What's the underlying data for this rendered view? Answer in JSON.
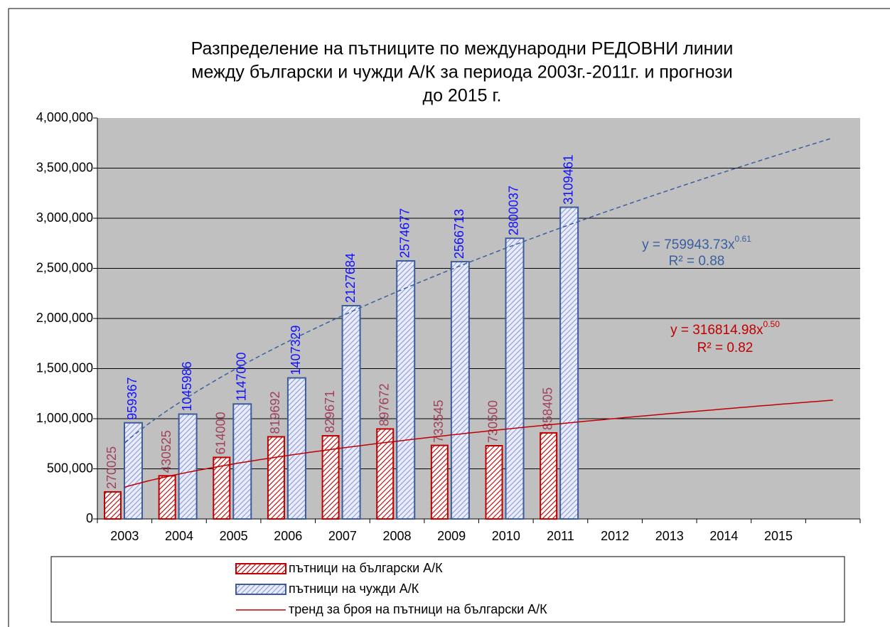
{
  "chart_data": {
    "type": "bar",
    "title": [
      "Разпределение на пътниците по международни РЕДОВНИ линии",
      "между български и чужди А/К за периода 2003г.-2011г. и прогнози",
      "до 2015 г."
    ],
    "categories": [
      "2003",
      "2004",
      "2005",
      "2006",
      "2007",
      "2008",
      "2009",
      "2010",
      "2011",
      "2012",
      "2013",
      "2014",
      "2015",
      null
    ],
    "series": [
      {
        "name": "пътници на български А/К",
        "color": "#c00000",
        "label_color": "#a0405a",
        "values": [
          270025,
          430525,
          614000,
          819692,
          829671,
          897672,
          733545,
          730500,
          858405,
          null,
          null,
          null,
          null,
          null
        ]
      },
      {
        "name": "пътници на чужди А/К",
        "color": "#3c5c9c",
        "label_color": "#1010ff",
        "values": [
          959367,
          1045986,
          1147000,
          1407329,
          2127684,
          2574677,
          2566713,
          2800037,
          3109461,
          null,
          null,
          null,
          null,
          null
        ]
      }
    ],
    "trendlines": [
      {
        "name": "тренд за броя на пътници на български А/К",
        "series": 0,
        "color": "#c00000",
        "dashed": false,
        "coefficient": 316814.98,
        "exponent": 0.5,
        "equation": "y = 316814.98x",
        "exponent_label": "0.50",
        "r2": "R² = 0.82"
      },
      {
        "series": 1,
        "color": "#3a5f9f",
        "dashed": true,
        "coefficient": 759943.73,
        "exponent": 0.61,
        "equation": "y = 759943.73x",
        "exponent_label": "0.61",
        "r2": "R² = 0.88"
      }
    ],
    "ylim": [
      0,
      4000000
    ],
    "yticks": [
      0,
      {
        "value": 500000,
        "label": "500,000"
      },
      {
        "value": 1000000,
        "label": "1,000,000"
      },
      {
        "value": 1500000,
        "label": "1,500,000"
      },
      {
        "value": 2000000,
        "label": "2,000,000"
      },
      {
        "value": 2500000,
        "label": "2,500,000"
      },
      {
        "value": 3000000,
        "label": "3,000,000"
      },
      {
        "value": 3500000,
        "label": "3,500,000"
      },
      {
        "value": 4000000,
        "label": "4,000,000"
      }
    ],
    "grid": true,
    "legend": "bottom"
  }
}
